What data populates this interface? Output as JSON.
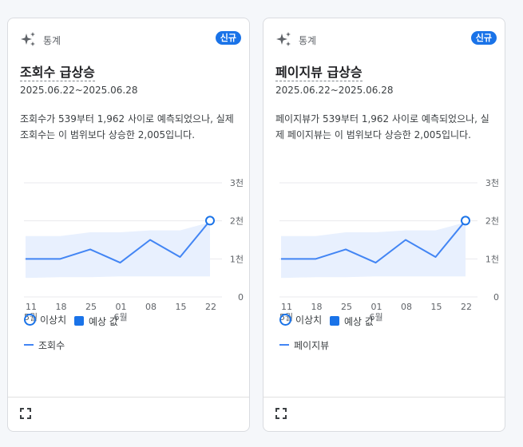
{
  "cards": [
    {
      "category": "통계",
      "badge": "신규",
      "title": "조회수 급상승",
      "date_range": "2025.06.22~2025.06.28",
      "description": "조회수가 539부터 1,962 사이로 예측되었으나, 실제 조회수는 이 범위보다 상승한 2,005입니다.",
      "legend": {
        "outlier": "이상치",
        "expected": "예상 값",
        "series": "조회수"
      }
    },
    {
      "category": "통계",
      "badge": "신규",
      "title": "페이지뷰 급상승",
      "date_range": "2025.06.22~2025.06.28",
      "description": "페이지뷰가 539부터 1,962 사이로 예측되었으나, 실제 페이지뷰는 이 범위보다 상승한 2,005입니다.",
      "legend": {
        "outlier": "이상치",
        "expected": "예상 값",
        "series": "페이지뷰"
      }
    }
  ],
  "colors": {
    "accent": "#1a73e8",
    "line": "#4285f4",
    "band": "#e8f0fe"
  },
  "chart_data": [
    {
      "type": "line",
      "x": [
        "11",
        "18",
        "25",
        "01",
        "08",
        "15",
        "22"
      ],
      "x_months": [
        "5월",
        "",
        "",
        "6월",
        "",
        "",
        ""
      ],
      "y_ticks": [
        "0",
        "1천",
        "2천",
        "3천"
      ],
      "ylim": [
        0,
        3000
      ],
      "series": [
        {
          "name": "조회수",
          "values": [
            1000,
            1000,
            1250,
            900,
            1500,
            1050,
            2005
          ]
        }
      ],
      "expected_band": {
        "upper": [
          1600,
          1600,
          1700,
          1700,
          1750,
          1750,
          1962
        ],
        "lower": [
          500,
          520,
          520,
          540,
          540,
          539,
          539
        ]
      },
      "outlier_index": 6
    },
    {
      "type": "line",
      "x": [
        "11",
        "18",
        "25",
        "01",
        "08",
        "15",
        "22"
      ],
      "x_months": [
        "5월",
        "",
        "",
        "6월",
        "",
        "",
        ""
      ],
      "y_ticks": [
        "0",
        "1천",
        "2천",
        "3천"
      ],
      "ylim": [
        0,
        3000
      ],
      "series": [
        {
          "name": "페이지뷰",
          "values": [
            1000,
            1000,
            1250,
            900,
            1500,
            1050,
            2005
          ]
        }
      ],
      "expected_band": {
        "upper": [
          1600,
          1600,
          1700,
          1700,
          1750,
          1750,
          1962
        ],
        "lower": [
          500,
          520,
          520,
          540,
          540,
          539,
          539
        ]
      },
      "outlier_index": 6
    }
  ]
}
